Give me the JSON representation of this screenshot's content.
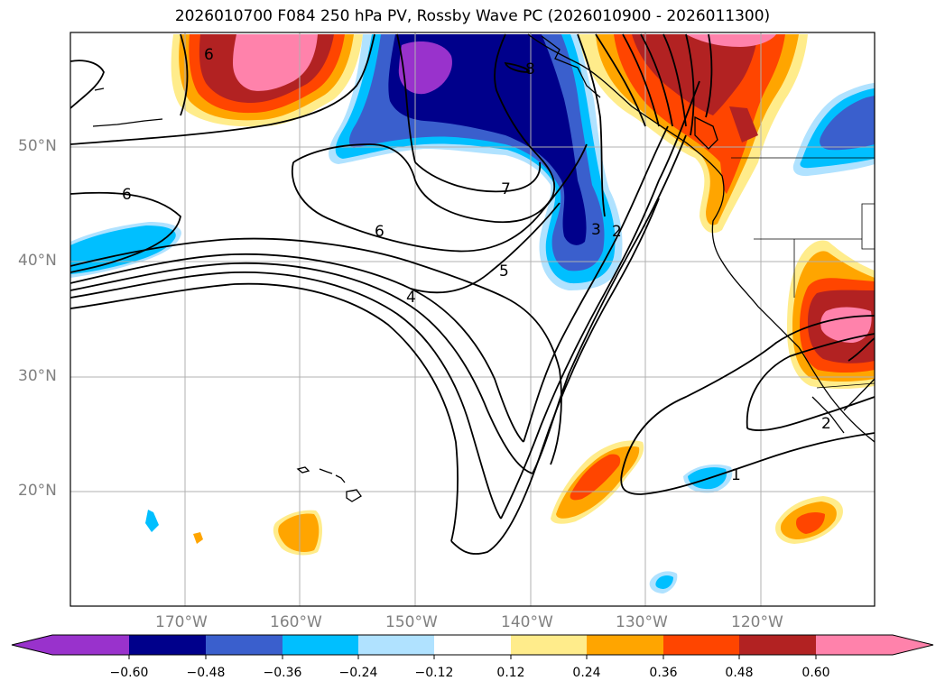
{
  "title": "2026010700 F084 250 hPa PV, Rossby Wave PC (2026010900 - 2026011300)",
  "axes": {
    "lat_labels": [
      "50°N",
      "40°N",
      "30°N",
      "20°N"
    ],
    "lon_labels": [
      "170°W",
      "160°W",
      "150°W",
      "140°W",
      "130°W",
      "120°W"
    ]
  },
  "contour_labels": [
    "6",
    "6",
    "7",
    "6",
    "5",
    "4",
    "3",
    "2",
    "2",
    "1",
    "8"
  ],
  "colorbar": {
    "ticks": [
      "−0.60",
      "−0.48",
      "−0.36",
      "−0.24",
      "−0.12",
      "0.12",
      "0.24",
      "0.36",
      "0.48",
      "0.60"
    ],
    "colors": [
      "#9932cc",
      "#00008b",
      "#3a5fcd",
      "#00bfff",
      "#b0e2ff",
      "#ffffff",
      "#ffec8b",
      "#ffa500",
      "#ff4500",
      "#b22222",
      "#ff82ab"
    ]
  },
  "colors": {
    "grid": "#b0b0b0",
    "contour": "#000000",
    "label": "#808080"
  }
}
